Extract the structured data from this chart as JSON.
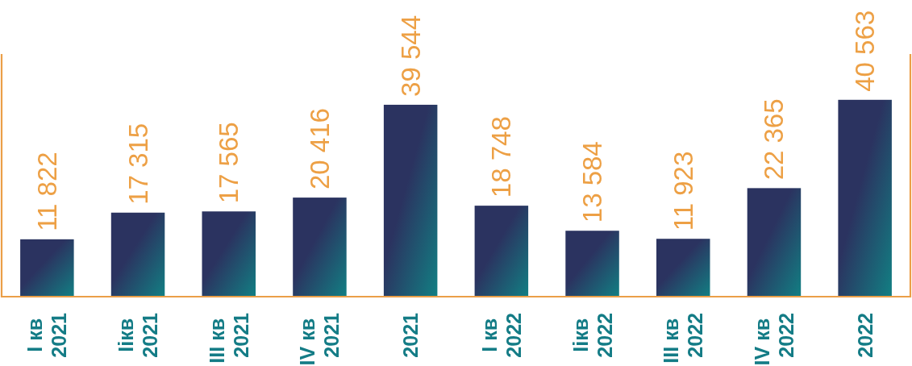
{
  "chart_data": {
    "type": "bar",
    "categories": [
      "I кв 2021",
      "Iiкв 2021",
      "III кв 2021",
      "IV кв 2021",
      "2021",
      "I кв 2022",
      "Iiкв 2022",
      "III кв 2022",
      "IV кв 2022",
      "2022"
    ],
    "values": [
      11822,
      17315,
      17565,
      20416,
      39544,
      18748,
      13584,
      11923,
      22365,
      40563
    ],
    "color": "#2b3360",
    "ylim": [
      0,
      50000
    ],
    "data_labels": true,
    "tick_labels": "x"
  }
}
